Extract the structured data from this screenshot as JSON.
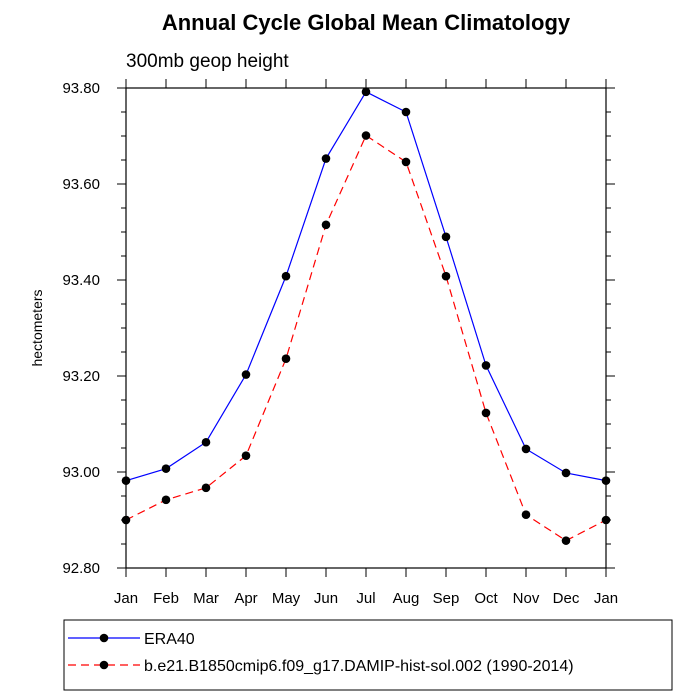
{
  "chart_data": {
    "type": "line",
    "title": "Annual Cycle Global Mean Climatology",
    "subtitle": "300mb geop height",
    "xlabel": "",
    "ylabel": "hectometers",
    "categories": [
      "Jan",
      "Feb",
      "Mar",
      "Apr",
      "May",
      "Jun",
      "Jul",
      "Aug",
      "Sep",
      "Oct",
      "Nov",
      "Dec",
      "Jan"
    ],
    "ylim": [
      92.8,
      93.8
    ],
    "yticks": [
      "92.80",
      "93.00",
      "93.20",
      "93.40",
      "93.60",
      "93.80"
    ],
    "grid": false,
    "legend_position": "bottom",
    "series": [
      {
        "name": "ERA40",
        "color": "#0000ff",
        "line_style": "solid",
        "marker": "filled-circle",
        "values": [
          92.982,
          93.007,
          93.062,
          93.203,
          93.408,
          93.653,
          93.792,
          93.75,
          93.49,
          93.222,
          93.048,
          92.998,
          92.982
        ]
      },
      {
        "name": "b.e21.B1850cmip6.f09_g17.DAMIP-hist-sol.002 (1990-2014)",
        "color": "#ff0000",
        "line_style": "dashed",
        "marker": "filled-circle",
        "values": [
          92.9,
          92.942,
          92.967,
          93.034,
          93.236,
          93.515,
          93.701,
          93.646,
          93.408,
          93.123,
          92.911,
          92.857,
          92.9
        ]
      }
    ]
  }
}
